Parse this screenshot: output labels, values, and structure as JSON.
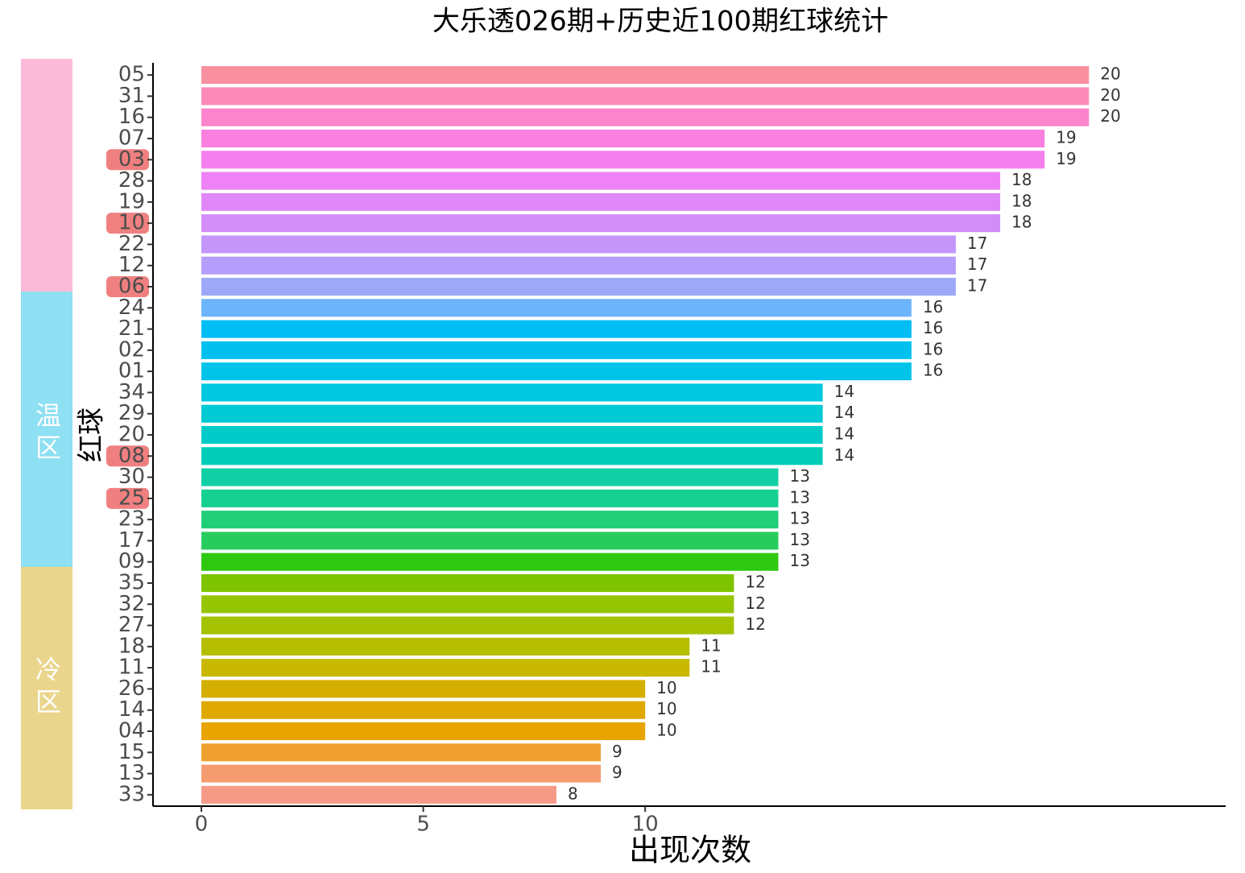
{
  "chart_data": {
    "type": "barh",
    "title": "大乐透026期+历史近100期红球统计",
    "x_label": "出现次数",
    "y_label": "红球",
    "categories": [
      "05",
      "31",
      "16",
      "07",
      "03",
      "28",
      "19",
      "10",
      "22",
      "12",
      "06",
      "24",
      "21",
      "02",
      "01",
      "34",
      "29",
      "20",
      "08",
      "30",
      "25",
      "23",
      "17",
      "09",
      "35",
      "32",
      "27",
      "18",
      "11",
      "26",
      "14",
      "04",
      "15",
      "13",
      "33"
    ],
    "values": [
      20,
      20,
      20,
      19,
      19,
      18,
      18,
      18,
      17,
      17,
      17,
      16,
      16,
      16,
      16,
      14,
      14,
      14,
      14,
      13,
      13,
      13,
      13,
      13,
      12,
      12,
      12,
      11,
      11,
      10,
      10,
      10,
      9,
      9,
      8
    ],
    "colors": [
      "#f890a0",
      "#fb8ab8",
      "#fc84cc",
      "#fa80e0",
      "#f67ff0",
      "#ee82f6",
      "#e087f7",
      "#d28df8",
      "#c596fa",
      "#b59efb",
      "#9da8f8",
      "#6cb4fb",
      "#00bdf6",
      "#00c0f0",
      "#00c3ea",
      "#00c8e0",
      "#00cad4",
      "#00cbc8",
      "#00ccb8",
      "#10cfa5",
      "#15d090",
      "#20cf78",
      "#28cc5e",
      "#2dc80f",
      "#7ec400",
      "#95c400",
      "#a4c200",
      "#b4bd00",
      "#c8b800",
      "#d4af00",
      "#dea800",
      "#e8a400",
      "#f0a030",
      "#f59b70",
      "#f69a88"
    ],
    "xlim": [
      -1.09,
      23.08
    ],
    "xticks": [
      0,
      5,
      10
    ],
    "highlight": [
      "03",
      "10",
      "06",
      "08",
      "25"
    ],
    "highlight_color": "#f08080",
    "zones": [
      {
        "color": "#fbbad8",
        "start": "05",
        "end": "06"
      },
      {
        "name": "温区",
        "color": "#8ee0f2",
        "start": "24",
        "end": "09"
      },
      {
        "name": "冷区",
        "color": "#ead58c",
        "start": "35",
        "end": "33"
      }
    ]
  }
}
